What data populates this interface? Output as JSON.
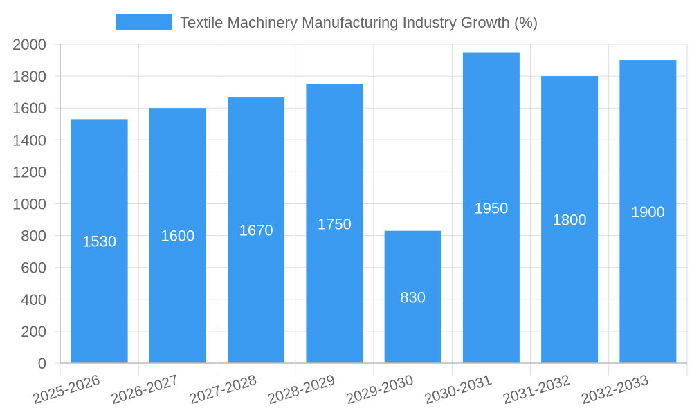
{
  "chart_data": {
    "type": "bar",
    "legend": {
      "label": "Textile Machinery Manufacturing Industry Growth (%)",
      "placement": "top-center"
    },
    "categories": [
      "2025-2026",
      "2026-2027",
      "2027-2028",
      "2028-2029",
      "2029-2030",
      "2030-2031",
      "2031-2032",
      "2032-2033"
    ],
    "series": [
      {
        "name": "Textile Machinery Manufacturing Industry Growth (%)",
        "values": [
          1530,
          1600,
          1670,
          1750,
          830,
          1950,
          1800,
          1900
        ],
        "color": "#3a9bf0"
      }
    ],
    "ylim": [
      0,
      2000
    ],
    "yticks": [
      0,
      200,
      400,
      600,
      800,
      1000,
      1200,
      1400,
      1600,
      1800,
      2000
    ],
    "grid": true,
    "data_labels": true
  }
}
